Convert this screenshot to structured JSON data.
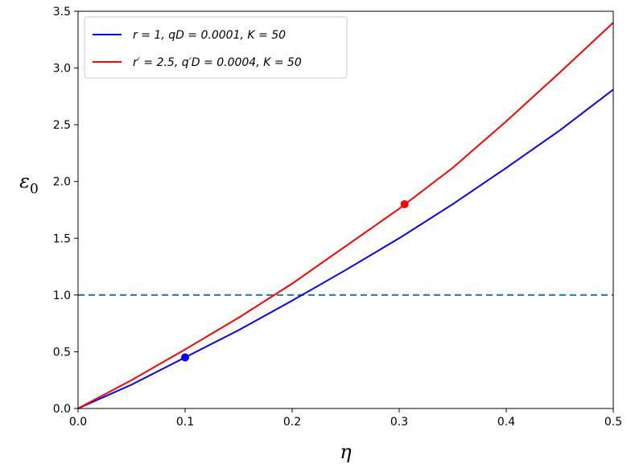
{
  "chart_data": {
    "type": "line",
    "xlabel": "η",
    "ylabel": "ε0",
    "xlim": [
      0.0,
      0.5
    ],
    "ylim": [
      0.0,
      3.5
    ],
    "xticks": [
      "0.0",
      "0.1",
      "0.2",
      "0.3",
      "0.4",
      "0.5"
    ],
    "yticks": [
      "0.0",
      "0.5",
      "1.0",
      "1.5",
      "2.0",
      "2.5",
      "3.0",
      "3.5"
    ],
    "grid": false,
    "legend_position": "top-left",
    "series": [
      {
        "name": "r = 1, q_D = 0.0001, K = 50",
        "legend_label": "r = 1, qD = 0.0001, K = 50",
        "color": "#0000ff",
        "x": [
          0.0,
          0.05,
          0.1,
          0.15,
          0.2,
          0.25,
          0.3,
          0.35,
          0.4,
          0.45,
          0.5
        ],
        "y": [
          0.0,
          0.21,
          0.45,
          0.69,
          0.95,
          1.22,
          1.5,
          1.8,
          2.12,
          2.45,
          2.81
        ],
        "marker": {
          "x": 0.1,
          "y": 0.45
        }
      },
      {
        "name": "r' = 2.5, q'_D = 0.0004, K = 50",
        "legend_label": "r′ = 2.5, q′D = 0.0004, K = 50",
        "color": "#ff0000",
        "x": [
          0.0,
          0.05,
          0.1,
          0.15,
          0.2,
          0.25,
          0.3,
          0.35,
          0.4,
          0.45,
          0.5
        ],
        "y": [
          0.0,
          0.25,
          0.52,
          0.8,
          1.1,
          1.43,
          1.76,
          2.12,
          2.53,
          2.96,
          3.4
        ],
        "marker": {
          "x": 0.305,
          "y": 1.8
        }
      }
    ],
    "reference_line": {
      "y": 1.0,
      "color": "#1f77b4",
      "style": "dashed"
    }
  }
}
